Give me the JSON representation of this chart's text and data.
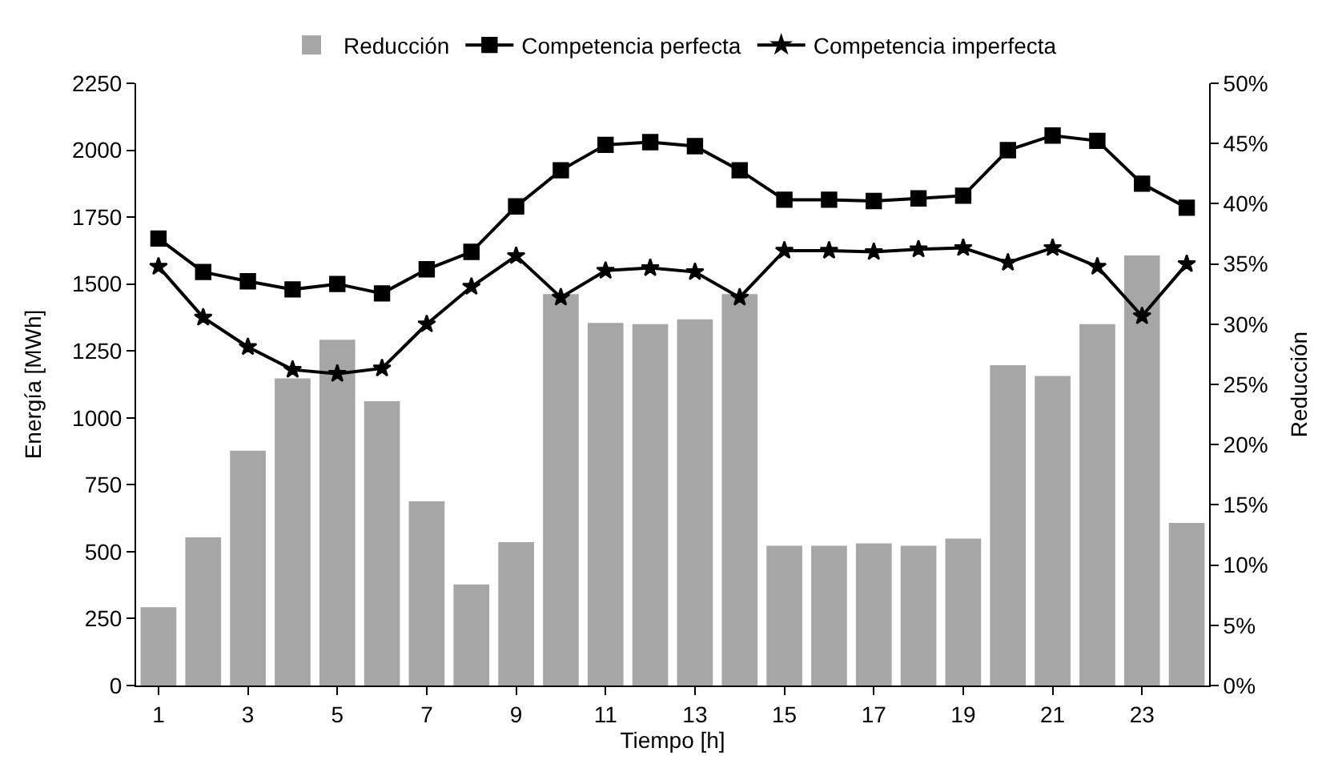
{
  "chart_data": {
    "type": "line",
    "xlabel": "Tiempo [h]",
    "ylabel": "Energía [MWh]",
    "y2label": "Reducción",
    "x": [
      1,
      2,
      3,
      4,
      5,
      6,
      7,
      8,
      9,
      10,
      11,
      12,
      13,
      14,
      15,
      16,
      17,
      18,
      19,
      20,
      21,
      22,
      23,
      24
    ],
    "xlim": [
      0.5,
      24.5
    ],
    "xticks": [
      1,
      3,
      5,
      7,
      9,
      11,
      13,
      15,
      17,
      19,
      21,
      23
    ],
    "ylim": [
      0,
      2250
    ],
    "yticks": [
      0,
      250,
      500,
      750,
      1000,
      1250,
      1500,
      1750,
      2000,
      2250
    ],
    "y2lim": [
      0,
      50
    ],
    "y2ticks": [
      {
        "value": 0,
        "label": "0%"
      },
      {
        "value": 5,
        "label": "5%"
      },
      {
        "value": 10,
        "label": "10%"
      },
      {
        "value": 15,
        "label": "15%"
      },
      {
        "value": 20,
        "label": "20%"
      },
      {
        "value": 25,
        "label": "25%"
      },
      {
        "value": 30,
        "label": "30%"
      },
      {
        "value": 35,
        "label": "35%"
      },
      {
        "value": 40,
        "label": "40%"
      },
      {
        "value": 45,
        "label": "45%"
      },
      {
        "value": 50,
        "label": "50%"
      }
    ],
    "legend": "top",
    "series": [
      {
        "name": "Reducción",
        "type": "bar",
        "axis": "y2",
        "color": "#a6a6a6",
        "values": [
          6.5,
          12.3,
          19.5,
          25.5,
          28.7,
          23.6,
          15.3,
          8.4,
          11.9,
          32.5,
          30.1,
          30.0,
          30.4,
          32.5,
          11.6,
          11.6,
          11.8,
          11.6,
          12.2,
          26.6,
          25.7,
          30.0,
          35.7,
          13.5
        ]
      },
      {
        "name": "Competencia perfecta",
        "color": "#000000",
        "marker": "square",
        "line_style": "solid",
        "values": [
          1670,
          1545,
          1510,
          1480,
          1500,
          1465,
          1555,
          1620,
          1790,
          1925,
          2020,
          2030,
          2015,
          1925,
          1815,
          1815,
          1810,
          1820,
          1830,
          2000,
          2055,
          2035,
          1875,
          1785
        ]
      },
      {
        "name": "Competencia imperfecta",
        "color": "#000000",
        "marker": "star",
        "line_style": "solid",
        "values": [
          1565,
          1375,
          1265,
          1180,
          1165,
          1185,
          1350,
          1490,
          1605,
          1450,
          1550,
          1560,
          1545,
          1450,
          1625,
          1625,
          1620,
          1630,
          1635,
          1580,
          1635,
          1565,
          1380,
          1575
        ]
      }
    ]
  }
}
